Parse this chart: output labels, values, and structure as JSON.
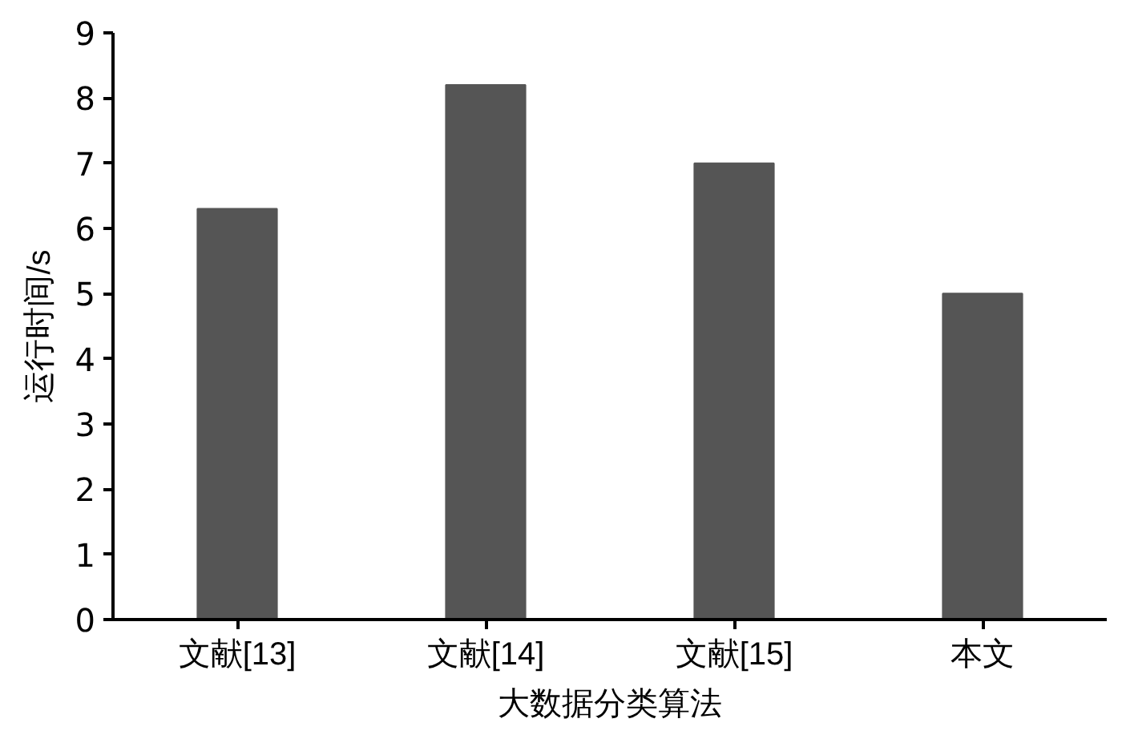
{
  "chart_data": {
    "type": "bar",
    "xlabel": "大数据分类算法",
    "ylabel": "运行时间/s",
    "categories": [
      "文献[13]",
      "文献[14]",
      "文献[15]",
      "本文"
    ],
    "values": [
      6.3,
      8.2,
      7.0,
      5.0
    ],
    "color": "#555555",
    "ylim": [
      0,
      9
    ],
    "yticks": [
      0,
      1,
      2,
      3,
      4,
      5,
      6,
      7,
      8,
      9
    ],
    "grid": false
  }
}
